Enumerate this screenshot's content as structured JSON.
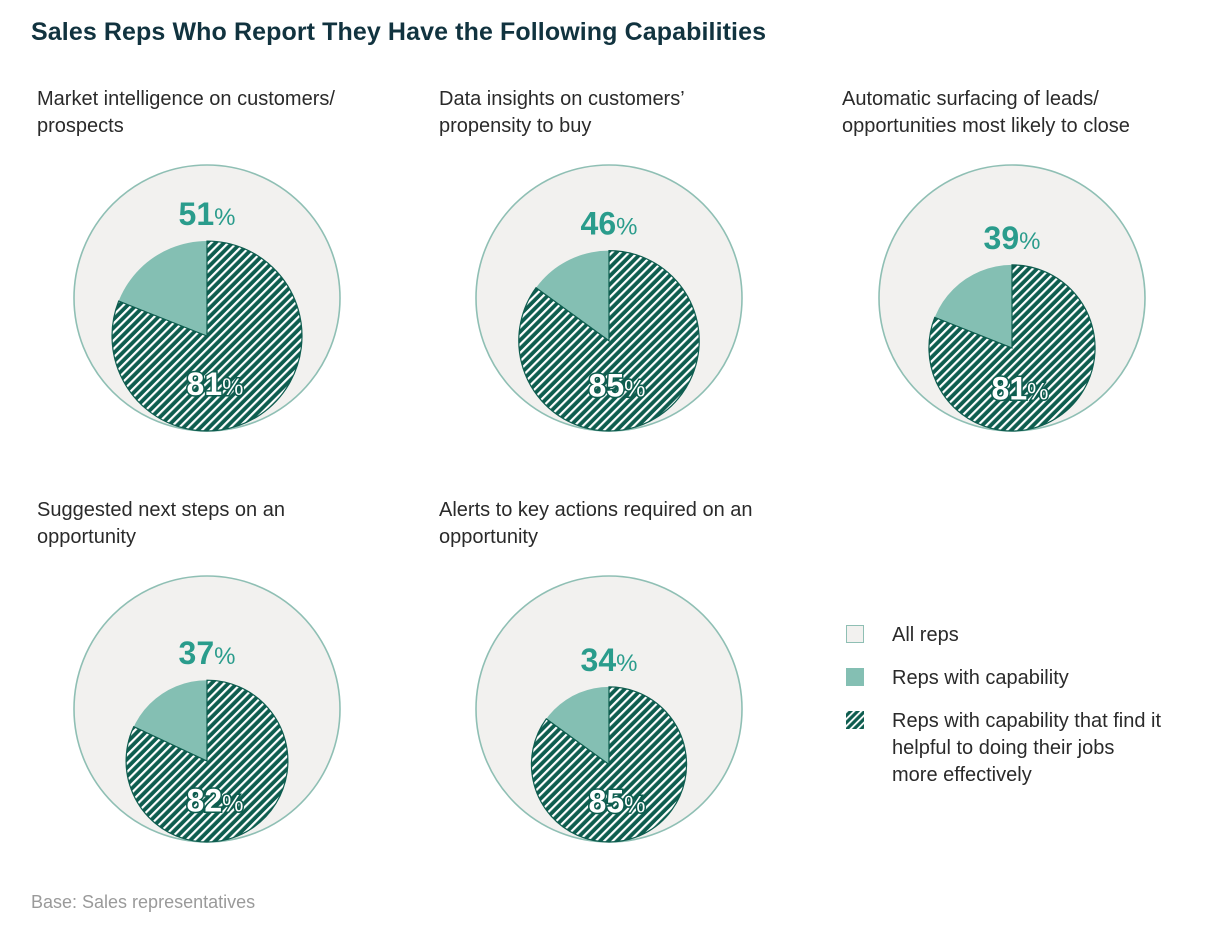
{
  "title": "Sales Reps Who Report They Have the Following Capabilities",
  "footer": "Base: Sales representatives",
  "colors": {
    "all_reps_fill": "#f2f1ef",
    "outline": "#8fbfb4",
    "capability": "#84bfb3",
    "helpful_base": "#0e5d4f",
    "helpful_stripe": "#ffffff",
    "text_teal": "#2a9c8c",
    "title": "#11333f"
  },
  "legend": [
    {
      "key": "all",
      "label": "All reps"
    },
    {
      "key": "cap",
      "label": "Reps with capability"
    },
    {
      "key": "help",
      "label": "Reps with capability that find it helpful to doing their jobs more effectively"
    }
  ],
  "chart_data": [
    {
      "type": "pie",
      "title": "Market intelligence on customers/ prospects",
      "capability_pct": 51,
      "helpful_pct": 81,
      "percent_symbol": "%"
    },
    {
      "type": "pie",
      "title": "Data insights on customers’ propensity to buy",
      "capability_pct": 46,
      "helpful_pct": 85,
      "percent_symbol": "%"
    },
    {
      "type": "pie",
      "title": "Automatic surfacing of leads/ opportunities most likely to close",
      "capability_pct": 39,
      "helpful_pct": 81,
      "percent_symbol": "%"
    },
    {
      "type": "pie",
      "title": "Suggested next steps on an opportunity",
      "capability_pct": 37,
      "helpful_pct": 82,
      "percent_symbol": "%"
    },
    {
      "type": "pie",
      "title": "Alerts to key actions required on an opportunity",
      "capability_pct": 34,
      "helpful_pct": 85,
      "percent_symbol": "%"
    }
  ]
}
